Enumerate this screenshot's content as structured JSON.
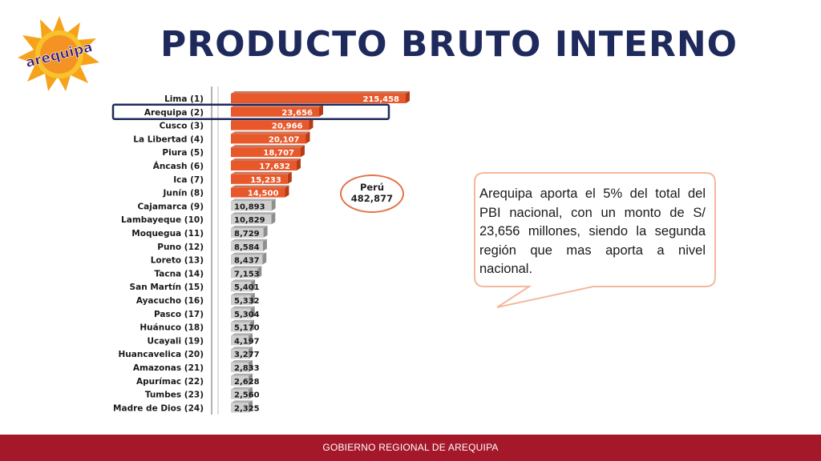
{
  "header": {
    "title": "PRODUCTO BRUTO INTERNO",
    "logo_text": "arequipa"
  },
  "chart_data": {
    "type": "bar",
    "orientation": "horizontal",
    "categories": [
      "Lima (1)",
      "Arequipa (2)",
      "Cusco (3)",
      "La Libertad (4)",
      "Piura (5)",
      "Áncash (6)",
      "Ica (7)",
      "Junín (8)",
      "Cajamarca (9)",
      "Lambayeque (10)",
      "Moquegua (11)",
      "Puno (12)",
      "Loreto (13)",
      "Tacna (14)",
      "San Martín (15)",
      "Ayacucho (16)",
      "Pasco (17)",
      "Huánuco (18)",
      "Ucayali (19)",
      "Huancavelica (20)",
      "Amazonas (21)",
      "Apurímac (22)",
      "Tumbes (23)",
      "Madre de Dios (24)"
    ],
    "values": [
      215458,
      23656,
      20966,
      20107,
      18707,
      17632,
      15233,
      14500,
      10893,
      10829,
      8729,
      8584,
      8437,
      7153,
      5401,
      5332,
      5304,
      5170,
      4197,
      3277,
      2833,
      2628,
      2560,
      2325
    ],
    "value_labels": [
      "215,458",
      "23,656",
      "20,966",
      "20,107",
      "18,707",
      "17,632",
      "15,233",
      "14,500",
      "10,893",
      "10,829",
      "8,729",
      "8,584",
      "8,437",
      "7,153",
      "5,401",
      "5,332",
      "5,304",
      "5,170",
      "4,197",
      "3,277",
      "2,833",
      "2,628",
      "2,560",
      "2,325"
    ],
    "highlight_category": "Arequipa (2)",
    "top_color": "#e8582a",
    "rest_color": "#cfcfcf",
    "highlight_box_color": "#1f2a5c",
    "total_label": "Perú",
    "total_value": "482,877"
  },
  "callout": {
    "text": "Arequipa aporta el 5% del total del PBI nacional, con un monto de S/ 23,656 millones, siendo la segunda región que mas aporta a nivel nacional."
  },
  "footer": {
    "text": "GOBIERNO REGIONAL DE AREQUIPA"
  },
  "colors": {
    "title": "#1f2a5c",
    "footer_bg": "#a5182a",
    "callout_border": "#f3b99c"
  }
}
